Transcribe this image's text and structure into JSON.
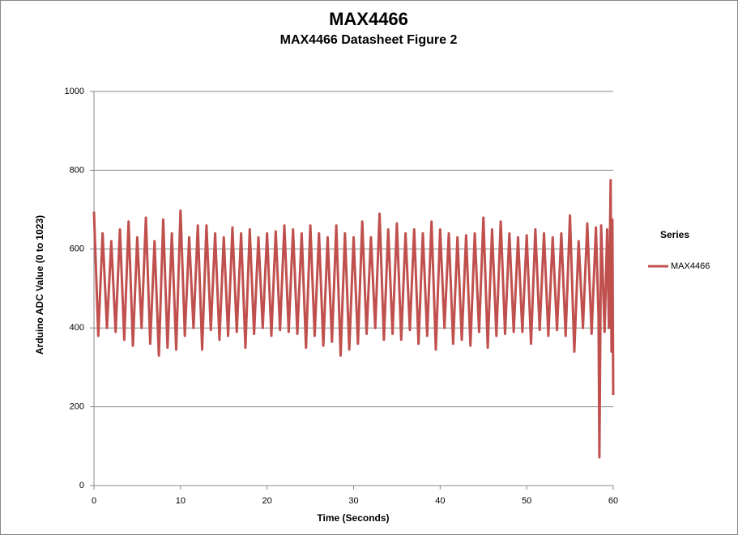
{
  "chart_data": {
    "type": "line",
    "title": "MAX4466",
    "subtitle": "MAX4466 Datasheet  Figure 2",
    "x_label": "Time (Seconds)",
    "y_label": "Arduino ADC Value (0 to 1023)",
    "legend_title": "Series",
    "legend": "right",
    "grid": true,
    "xlim": [
      0,
      60
    ],
    "xticks": [
      0,
      10,
      20,
      30,
      40,
      50,
      60
    ],
    "ylim": [
      0,
      1000
    ],
    "yticks": [
      0,
      200,
      400,
      600,
      800,
      1000
    ],
    "x": [
      0,
      0.5,
      1,
      1.5,
      2,
      2.5,
      3,
      3.5,
      4,
      4.5,
      5,
      5.5,
      6,
      6.5,
      7,
      7.5,
      8,
      8.5,
      9,
      9.5,
      10,
      10.5,
      11,
      11.5,
      12,
      12.5,
      13,
      13.5,
      14,
      14.5,
      15,
      15.5,
      16,
      16.5,
      17,
      17.5,
      18,
      18.5,
      19,
      19.5,
      20,
      20.5,
      21,
      21.5,
      22,
      22.5,
      23,
      23.5,
      24,
      24.5,
      25,
      25.5,
      26,
      26.5,
      27,
      27.5,
      28,
      28.5,
      29,
      29.5,
      30,
      30.5,
      31,
      31.5,
      32,
      32.5,
      33,
      33.5,
      34,
      34.5,
      35,
      35.5,
      36,
      36.5,
      37,
      37.5,
      38,
      38.5,
      39,
      39.5,
      40,
      40.5,
      41,
      41.5,
      42,
      42.5,
      43,
      43.5,
      44,
      44.5,
      45,
      45.5,
      46,
      46.5,
      47,
      47.5,
      48,
      48.5,
      49,
      49.5,
      50,
      50.5,
      51,
      51.5,
      52,
      52.5,
      53,
      53.5,
      54,
      54.5,
      55,
      55.5,
      56,
      56.5,
      57,
      57.5,
      58,
      58.3,
      58.4,
      58.6,
      59,
      59.3,
      59.5,
      59.7,
      59.8,
      59.9,
      60
    ],
    "series": [
      {
        "name": "MAX4466",
        "color": "#c0504d",
        "values": [
          695,
          380,
          640,
          400,
          620,
          390,
          650,
          370,
          670,
          355,
          630,
          400,
          680,
          360,
          620,
          330,
          675,
          350,
          640,
          345,
          698,
          380,
          630,
          400,
          660,
          345,
          660,
          395,
          640,
          370,
          630,
          380,
          655,
          390,
          640,
          350,
          650,
          385,
          630,
          400,
          640,
          380,
          645,
          395,
          660,
          390,
          650,
          385,
          640,
          350,
          660,
          380,
          640,
          355,
          630,
          365,
          660,
          330,
          640,
          345,
          630,
          360,
          670,
          385,
          630,
          400,
          690,
          370,
          650,
          385,
          665,
          370,
          640,
          395,
          650,
          360,
          640,
          380,
          670,
          345,
          650,
          400,
          640,
          360,
          630,
          370,
          635,
          355,
          640,
          390,
          680,
          350,
          650,
          380,
          670,
          385,
          640,
          390,
          630,
          390,
          635,
          360,
          650,
          395,
          640,
          380,
          630,
          395,
          640,
          380,
          685,
          340,
          620,
          400,
          665,
          385,
          655,
          430,
          72,
          660,
          390,
          650,
          400,
          775,
          340,
          675,
          230
        ]
      }
    ]
  }
}
